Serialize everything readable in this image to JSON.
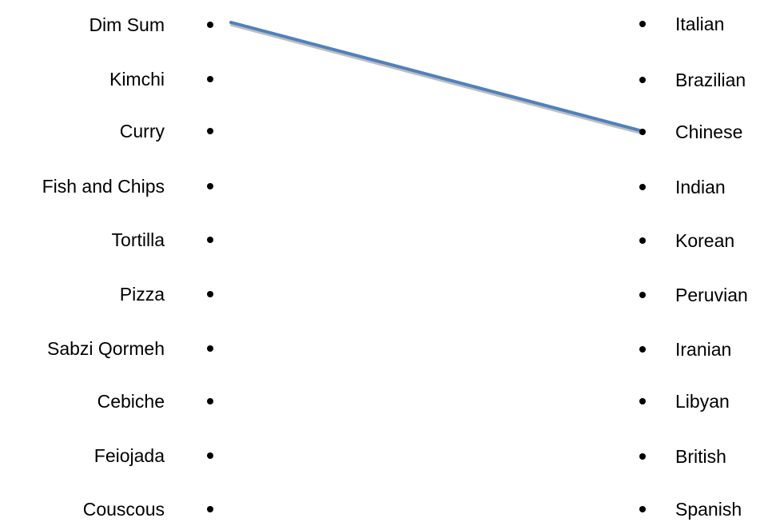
{
  "left_items": [
    {
      "label": "Dim Sum"
    },
    {
      "label": "Kimchi"
    },
    {
      "label": "Curry"
    },
    {
      "label": "Fish and Chips"
    },
    {
      "label": "Tortilla"
    },
    {
      "label": "Pizza"
    },
    {
      "label": "Sabzi Qormeh"
    },
    {
      "label": "Cebiche"
    },
    {
      "label": "Feiojada"
    },
    {
      "label": "Couscous"
    }
  ],
  "right_items": [
    {
      "label": "Italian"
    },
    {
      "label": "Brazilian"
    },
    {
      "label": "Chinese"
    },
    {
      "label": "Indian"
    },
    {
      "label": "Korean"
    },
    {
      "label": "Peruvian"
    },
    {
      "label": "Iranian"
    },
    {
      "label": "Libyan"
    },
    {
      "label": "British"
    },
    {
      "label": "Spanish"
    }
  ],
  "connections": [
    {
      "from": "Dim Sum",
      "to": "Chinese"
    }
  ],
  "colors": {
    "connector": "#4f81bd",
    "connector_shadow": "#bfbfbf",
    "dot": "#000000",
    "text": "#000000"
  }
}
